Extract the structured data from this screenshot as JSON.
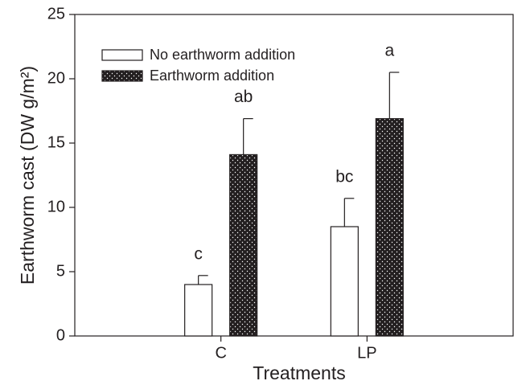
{
  "chart_data": {
    "type": "bar",
    "x_label": "Treatments",
    "y_label": "Earthworm cast (DW g/m²)",
    "categories": [
      "C",
      "LP"
    ],
    "series": [
      {
        "name": "No earthworm addition",
        "color": "#ffffff",
        "values": [
          4.0,
          8.5
        ],
        "errors": [
          0.7,
          2.2
        ],
        "letters": [
          "c",
          "bc"
        ]
      },
      {
        "name": "Earthworm addition",
        "color": "#231f20",
        "pattern": "dots",
        "values": [
          14.1,
          16.9
        ],
        "errors": [
          2.8,
          3.6
        ],
        "letters": [
          "ab",
          "a"
        ]
      }
    ],
    "ylim": [
      0,
      25
    ],
    "yticks": [
      0,
      5,
      10,
      15,
      20,
      25
    ],
    "legend": "upper left",
    "grid": false
  }
}
